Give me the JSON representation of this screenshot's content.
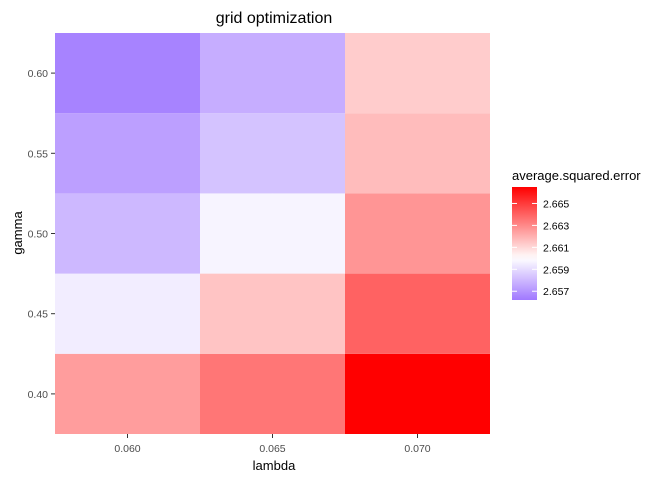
{
  "chart_data": {
    "type": "heatmap",
    "title": "grid optimization",
    "xlabel": "lambda",
    "ylabel": "gamma",
    "x": [
      0.06,
      0.065,
      0.07
    ],
    "y": [
      0.4,
      0.45,
      0.5,
      0.55,
      0.6
    ],
    "x_tick_labels": [
      "0.060",
      "0.065",
      "0.070"
    ],
    "y_tick_labels": [
      "0.40",
      "0.45",
      "0.50",
      "0.55",
      "0.60"
    ],
    "xlim": [
      0.0575,
      0.0725
    ],
    "ylim": [
      0.375,
      0.625
    ],
    "values": [
      [
        2.6625,
        2.6635,
        2.6665
      ],
      [
        2.6595,
        2.6615,
        2.664
      ],
      [
        2.658,
        2.6597,
        2.6627
      ],
      [
        2.6573,
        2.6583,
        2.6617
      ],
      [
        2.6565,
        2.6577,
        2.6613
      ]
    ],
    "legend": {
      "title": "average.squared.error",
      "labels": [
        "2.665",
        "2.663",
        "2.661",
        "2.659",
        "2.657"
      ],
      "breaks": [
        2.665,
        2.663,
        2.661,
        2.659,
        2.657
      ],
      "range": [
        2.6562,
        2.6665
      ],
      "position": "right"
    },
    "colors": {
      "low": "#a078ff",
      "mid": "#ffffff",
      "high": "#ff0000",
      "midpoint": 2.66,
      "panel_background": "#ebebeb",
      "grid": "#ffffff"
    },
    "grid": true
  }
}
